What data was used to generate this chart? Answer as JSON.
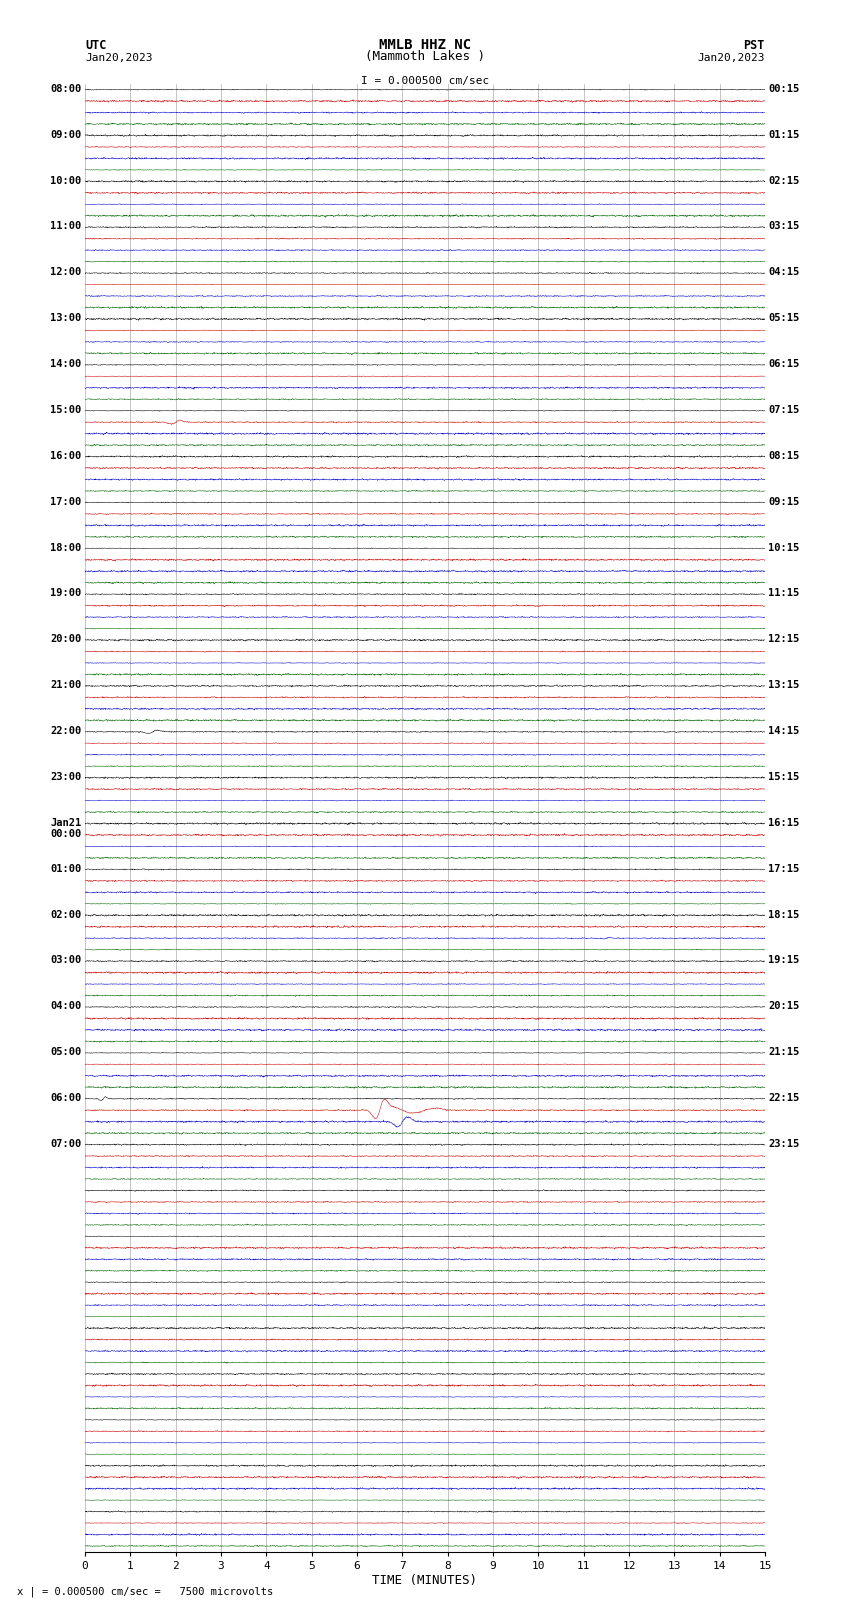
{
  "title_line1": "MMLB HHZ NC",
  "title_line2": "(Mammoth Lakes )",
  "title_scale": "I = 0.000500 cm/sec",
  "utc_label": "UTC",
  "utc_date": "Jan20,2023",
  "pst_label": "PST",
  "pst_date": "Jan20,2023",
  "xlabel": "TIME (MINUTES)",
  "bottom_label": "x | = 0.000500 cm/sec =   7500 microvolts",
  "xlim": [
    0,
    15
  ],
  "xticks": [
    0,
    1,
    2,
    3,
    4,
    5,
    6,
    7,
    8,
    9,
    10,
    11,
    12,
    13,
    14,
    15
  ],
  "bg_color": "#ffffff",
  "trace_colors": [
    "#000000",
    "#cc0000",
    "#0000cc",
    "#006600"
  ],
  "n_rows": 32,
  "traces_per_row": 4,
  "fig_width": 8.5,
  "fig_height": 16.13,
  "dpi": 100,
  "utc_row_labels": [
    "08:00",
    "09:00",
    "10:00",
    "11:00",
    "12:00",
    "13:00",
    "14:00",
    "15:00",
    "16:00",
    "17:00",
    "18:00",
    "19:00",
    "20:00",
    "21:00",
    "22:00",
    "23:00",
    "Jan21\n00:00",
    "01:00",
    "02:00",
    "03:00",
    "04:00",
    "05:00",
    "06:00",
    "07:00",
    "",
    "",
    "",
    "",
    "",
    "",
    "",
    ""
  ],
  "pst_row_labels": [
    "00:15",
    "01:15",
    "02:15",
    "03:15",
    "04:15",
    "05:15",
    "06:15",
    "07:15",
    "08:15",
    "09:15",
    "10:15",
    "11:15",
    "12:15",
    "13:15",
    "14:15",
    "15:15",
    "16:15",
    "17:15",
    "18:15",
    "19:15",
    "20:15",
    "21:15",
    "22:15",
    "23:15",
    "",
    "",
    "",
    "",
    "",
    "",
    "",
    ""
  ]
}
